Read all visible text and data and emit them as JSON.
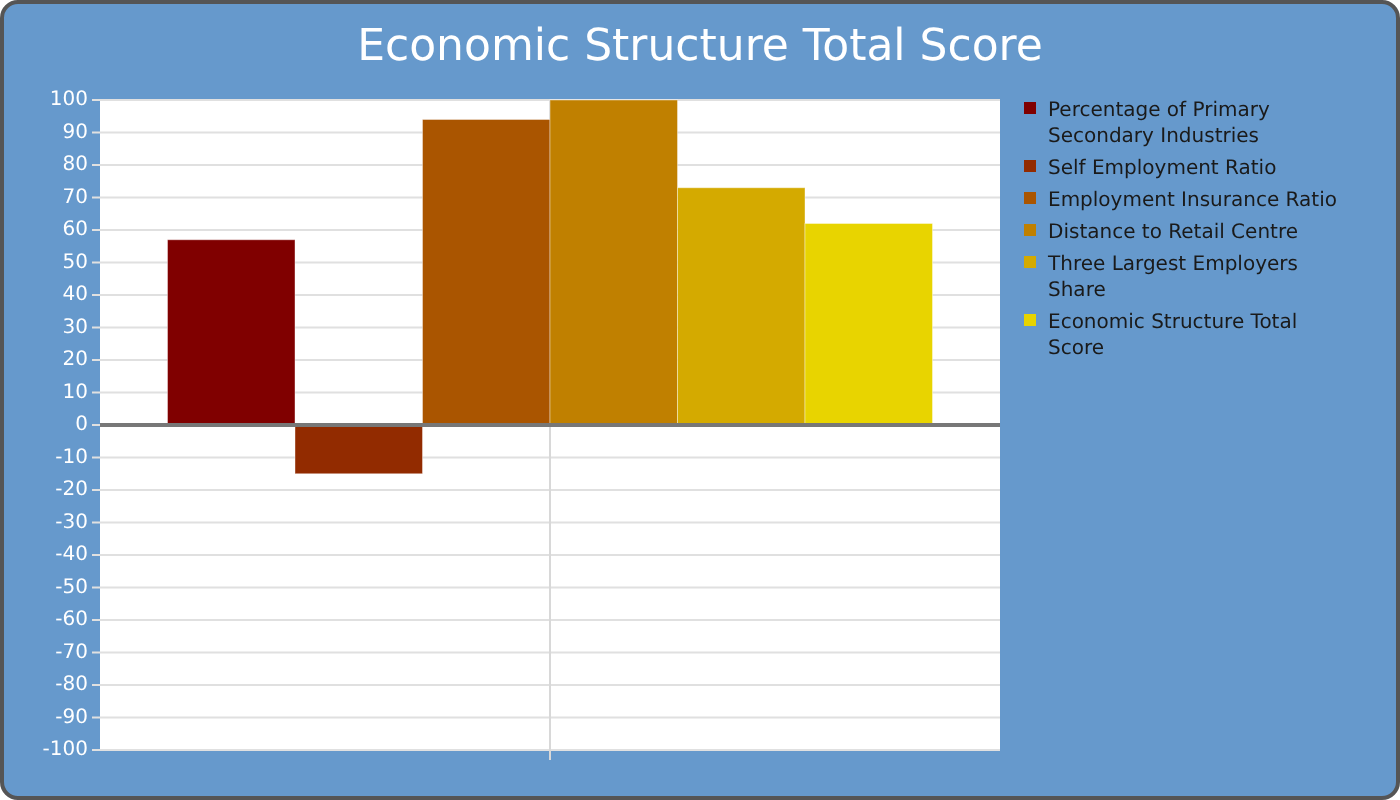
{
  "chart_data": {
    "type": "bar",
    "title": "Economic Structure Total Score",
    "categories": [
      null
    ],
    "series": [
      {
        "name": "Percentage of Primary Secondary Industries",
        "color": "#800000",
        "values": [
          57
        ]
      },
      {
        "name": "Self Employment Ratio",
        "color": "#922b00",
        "values": [
          -15
        ]
      },
      {
        "name": "Employment Insurance Ratio",
        "color": "#aa5500",
        "values": [
          94
        ]
      },
      {
        "name": "Distance to Retail Centre",
        "color": "#c08000",
        "values": [
          100
        ]
      },
      {
        "name": "Three Largest Employers Share",
        "color": "#d4aa00",
        "values": [
          73
        ]
      },
      {
        "name": "Economic Structure Total Score",
        "color": "#e8d400",
        "values": [
          62
        ]
      }
    ],
    "ylim": [
      -100,
      100
    ],
    "yticks": [
      -100,
      -90,
      -80,
      -70,
      -60,
      -50,
      -40,
      -30,
      -20,
      -10,
      0,
      10,
      20,
      30,
      40,
      50,
      60,
      70,
      80,
      90,
      100
    ],
    "grid": true,
    "legend": "right"
  }
}
